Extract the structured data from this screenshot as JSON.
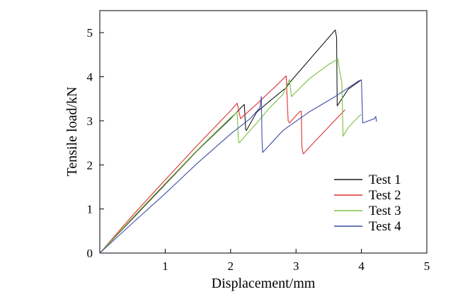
{
  "chart_data": {
    "type": "line",
    "xlabel": "Displacement/mm",
    "ylabel": "Tensile load/kN",
    "xlim": [
      0,
      5
    ],
    "ylim": [
      0,
      5.5
    ],
    "x_ticks": [
      "1",
      "2",
      "3",
      "4",
      "5"
    ],
    "y_ticks": [
      "0",
      "1",
      "2",
      "3",
      "4",
      "5"
    ],
    "grid": false,
    "legend": "center-right",
    "series": [
      {
        "name": "Test 1",
        "color": "#1a1a1a",
        "points": [
          [
            0,
            0
          ],
          [
            0.5,
            0.78
          ],
          [
            1.0,
            1.56
          ],
          [
            1.5,
            2.34
          ],
          [
            2.0,
            3.05
          ],
          [
            2.18,
            3.33
          ],
          [
            2.21,
            3.37
          ],
          [
            2.23,
            2.8
          ],
          [
            2.24,
            2.78
          ],
          [
            2.4,
            3.2
          ],
          [
            2.6,
            3.45
          ],
          [
            2.85,
            3.75
          ],
          [
            2.91,
            3.88
          ],
          [
            3.6,
            5.06
          ],
          [
            3.62,
            4.9
          ],
          [
            3.63,
            3.34
          ],
          [
            3.8,
            3.72
          ],
          [
            4.0,
            3.93
          ]
        ]
      },
      {
        "name": "Test 2",
        "color": "#e03030",
        "points": [
          [
            0,
            0
          ],
          [
            0.5,
            0.85
          ],
          [
            1.0,
            1.66
          ],
          [
            1.5,
            2.46
          ],
          [
            2.0,
            3.23
          ],
          [
            2.1,
            3.4
          ],
          [
            2.13,
            3.2
          ],
          [
            2.15,
            3.05
          ],
          [
            2.4,
            3.38
          ],
          [
            2.7,
            3.8
          ],
          [
            2.85,
            4.02
          ],
          [
            2.88,
            3.0
          ],
          [
            2.9,
            2.95
          ],
          [
            3.05,
            3.2
          ],
          [
            3.08,
            3.22
          ],
          [
            3.09,
            2.4
          ],
          [
            3.11,
            2.25
          ],
          [
            3.3,
            2.55
          ],
          [
            3.6,
            3.02
          ],
          [
            3.75,
            3.25
          ]
        ]
      },
      {
        "name": "Test 3",
        "color": "#7ac142",
        "points": [
          [
            0,
            0
          ],
          [
            0.5,
            0.8
          ],
          [
            1.0,
            1.58
          ],
          [
            1.5,
            2.35
          ],
          [
            2.0,
            3.07
          ],
          [
            2.1,
            3.2
          ],
          [
            2.12,
            2.55
          ],
          [
            2.13,
            2.5
          ],
          [
            2.4,
            2.95
          ],
          [
            2.6,
            3.3
          ],
          [
            2.8,
            3.6
          ],
          [
            2.9,
            3.94
          ],
          [
            2.93,
            3.55
          ],
          [
            3.2,
            3.95
          ],
          [
            3.5,
            4.28
          ],
          [
            3.64,
            4.4
          ],
          [
            3.67,
            4.1
          ],
          [
            3.7,
            3.88
          ],
          [
            3.72,
            2.65
          ],
          [
            3.8,
            2.85
          ],
          [
            3.96,
            3.1
          ],
          [
            4.0,
            3.15
          ]
        ]
      },
      {
        "name": "Test 4",
        "color": "#3d4fa6",
        "points": [
          [
            0,
            0
          ],
          [
            0.5,
            0.68
          ],
          [
            1.0,
            1.35
          ],
          [
            1.5,
            2.05
          ],
          [
            2.0,
            2.7
          ],
          [
            2.3,
            3.05
          ],
          [
            2.45,
            3.3
          ],
          [
            2.47,
            3.55
          ],
          [
            2.48,
            2.55
          ],
          [
            2.49,
            2.28
          ],
          [
            2.8,
            2.78
          ],
          [
            3.2,
            3.2
          ],
          [
            3.6,
            3.55
          ],
          [
            3.95,
            3.9
          ],
          [
            4.0,
            3.93
          ],
          [
            4.02,
            2.95
          ],
          [
            4.2,
            3.05
          ],
          [
            4.22,
            3.1
          ],
          [
            4.23,
            2.98
          ]
        ]
      }
    ]
  }
}
